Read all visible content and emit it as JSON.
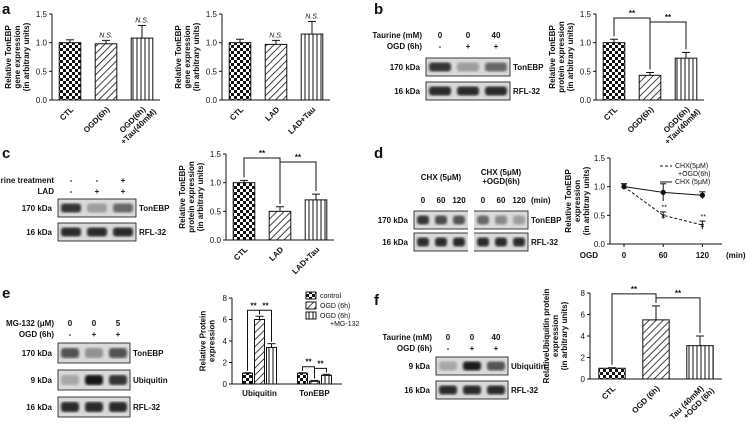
{
  "panel_letters": {
    "a": "a",
    "b": "b",
    "c": "c",
    "d": "d",
    "e": "e",
    "f": "f"
  },
  "colors": {
    "bar_fill": "#ffffff",
    "ink": "#111111",
    "blot_band": "#1a1a1a",
    "blot_bg": "#d9d9d9"
  },
  "blots": {
    "b": {
      "conditions": [
        {
          "label": "Taurine (mM)",
          "values": [
            "0",
            "0",
            "40"
          ]
        },
        {
          "label": "OGD (6h)",
          "values": [
            "-",
            "+",
            "+"
          ]
        }
      ],
      "rows": [
        {
          "kda": "170 kDa",
          "name": "TonEBP",
          "intensities": [
            0.85,
            0.35,
            0.6
          ]
        },
        {
          "kda": "16 kDa",
          "name": "RFL-32",
          "intensities": [
            0.9,
            0.9,
            0.9
          ]
        }
      ]
    },
    "c": {
      "conditions": [
        {
          "label": "Taurine treatment",
          "values": [
            "-",
            "-",
            "+"
          ]
        },
        {
          "label": "LAD",
          "values": [
            "-",
            "+",
            "+"
          ]
        }
      ],
      "rows": [
        {
          "kda": "170 kDa",
          "name": "TonEBP",
          "intensities": [
            0.85,
            0.35,
            0.6
          ]
        },
        {
          "kda": "16 kDa",
          "name": "RFL-32",
          "intensities": [
            0.9,
            0.9,
            0.9
          ]
        }
      ]
    },
    "d": {
      "groups": [
        "CHX (5μM)",
        "CHX (5μM) +OGD(6h)"
      ],
      "times": [
        "0",
        "60",
        "120"
      ],
      "unit": "(min)",
      "rows": [
        {
          "kda": "170 kDa",
          "name": "TonEBP",
          "intensities": [
            0.85,
            0.75,
            0.7,
            0.6,
            0.45,
            0.35
          ]
        },
        {
          "kda": "16 kDa",
          "name": "RFL-32",
          "intensities": [
            0.9,
            0.9,
            0.9,
            0.9,
            0.9,
            0.9
          ]
        }
      ]
    },
    "e": {
      "conditions": [
        {
          "label": "MG-132 (μM)",
          "values": [
            "0",
            "0",
            "5"
          ]
        },
        {
          "label": "OGD (6h)",
          "values": [
            "-",
            "+",
            "+"
          ]
        }
      ],
      "rows": [
        {
          "kda": "170 kDa",
          "name": "TonEBP",
          "intensities": [
            0.7,
            0.4,
            0.7
          ]
        },
        {
          "kda": "9 kDa",
          "name": "Ubiquitin",
          "intensities": [
            0.3,
            1.0,
            0.85
          ]
        },
        {
          "kda": "16 kDa",
          "name": "RFL-32",
          "intensities": [
            0.9,
            0.9,
            0.9
          ]
        }
      ]
    },
    "f": {
      "conditions": [
        {
          "label": "Taurine (mM)",
          "values": [
            "0",
            "0",
            "40"
          ]
        },
        {
          "label": "OGD (6h)",
          "values": [
            "-",
            "+",
            "+"
          ]
        }
      ],
      "rows": [
        {
          "kda": "9 kDa",
          "name": "Ubiquitin",
          "intensities": [
            0.3,
            0.95,
            0.7
          ]
        },
        {
          "kda": "16 kDa",
          "name": "RFL-32",
          "intensities": [
            0.9,
            0.9,
            0.9
          ]
        }
      ]
    }
  },
  "chart_data": [
    {
      "id": "a1",
      "type": "bar",
      "ylabel": "Relative TonEBP gene expression (in arbitrary units)",
      "categories": [
        "CTL",
        "OGD(6h)",
        "OGD(6h) +Tau(40mM)"
      ],
      "values": [
        1.0,
        0.98,
        1.08
      ],
      "errors": [
        0.05,
        0.06,
        0.22
      ],
      "annotations": [
        "",
        "N.S.",
        "N.S."
      ],
      "ylim": [
        0,
        1.5
      ],
      "yticks": [
        "0.0",
        "0.5",
        "1.0",
        "1.5"
      ],
      "patterns": [
        "checker",
        "diag",
        "vert"
      ]
    },
    {
      "id": "a2",
      "type": "bar",
      "ylabel": "Relative TonEBP gene expression (in arbitrary units)",
      "categories": [
        "CTL",
        "LAD",
        "LAD+Tau"
      ],
      "values": [
        1.0,
        0.97,
        1.15
      ],
      "errors": [
        0.06,
        0.07,
        0.22
      ],
      "annotations": [
        "",
        "N.S.",
        "N.S."
      ],
      "ylim": [
        0,
        1.5
      ],
      "yticks": [
        "0.0",
        "0.5",
        "1.0",
        "1.5"
      ],
      "patterns": [
        "checker",
        "diag",
        "vert"
      ]
    },
    {
      "id": "b",
      "type": "bar",
      "ylabel": "Relative TonEBP protein expression (in arbitrary units)",
      "categories": [
        "CTL",
        "OGD(6h)",
        "OGD(6h) +Tau(40mM)"
      ],
      "values": [
        1.0,
        0.43,
        0.73
      ],
      "errors": [
        0.06,
        0.05,
        0.1
      ],
      "brackets": [
        {
          "from": 0,
          "to": 1,
          "label": "**"
        },
        {
          "from": 1,
          "to": 2,
          "label": "**"
        }
      ],
      "ylim": [
        0,
        1.5
      ],
      "yticks": [
        "0.0",
        "0.5",
        "1.0",
        "1.5"
      ],
      "patterns": [
        "checker",
        "diag",
        "vert"
      ]
    },
    {
      "id": "c",
      "type": "bar",
      "ylabel": "Relative TonEBP protein expression (in arbitrary units)",
      "categories": [
        "CTL",
        "LAD",
        "LAD+Tau"
      ],
      "values": [
        1.0,
        0.5,
        0.7
      ],
      "errors": [
        0.04,
        0.08,
        0.1
      ],
      "brackets": [
        {
          "from": 0,
          "to": 1,
          "label": "**"
        },
        {
          "from": 1,
          "to": 2,
          "label": "**"
        }
      ],
      "ylim": [
        0,
        1.5
      ],
      "yticks": [
        "0.0",
        "0.5",
        "1.0",
        "1.5"
      ],
      "patterns": [
        "checker",
        "diag",
        "vert"
      ]
    },
    {
      "id": "d",
      "type": "line",
      "ylabel": "Relative TonEBP expression (in arbitrary units)",
      "x": [
        0,
        60,
        120
      ],
      "xticks": [
        "0",
        "60",
        "120"
      ],
      "xunit": "(min)",
      "xprefix": "OGD",
      "series": [
        {
          "name": "CHX(5μM) +OGD(6h)",
          "values": [
            1.0,
            0.5,
            0.33
          ],
          "errors": [
            0.05,
            0.06,
            0.07
          ],
          "annot": [
            "",
            "**",
            "**"
          ],
          "style": "dashed"
        },
        {
          "name": "CHX (5μM)",
          "values": [
            1.0,
            0.9,
            0.85
          ],
          "errors": [
            0.05,
            0.15,
            0.06
          ],
          "annot": [
            "",
            "",
            ""
          ],
          "style": "solid"
        }
      ],
      "ylim": [
        0,
        1.5
      ],
      "yticks": [
        "0.0",
        "0.5",
        "1.0",
        "1.5"
      ]
    },
    {
      "id": "e",
      "type": "bar",
      "ylabel": "Relative Protein expression",
      "categories": [
        "Ubiquitin",
        "TonEBP"
      ],
      "series": [
        {
          "name": "control",
          "values": [
            1.0,
            1.0
          ],
          "errors": [
            0.05,
            0.05
          ],
          "pattern": "checker"
        },
        {
          "name": "OGD (6h)",
          "values": [
            6.0,
            0.25
          ],
          "errors": [
            0.3,
            0.08
          ],
          "pattern": "diag"
        },
        {
          "name": "OGD (6h) +MG-132",
          "values": [
            3.4,
            0.8
          ],
          "errors": [
            0.35,
            0.1
          ],
          "pattern": "vert"
        }
      ],
      "brackets": [
        {
          "group": 0,
          "from": 0,
          "to": 1,
          "label": "**"
        },
        {
          "group": 0,
          "from": 1,
          "to": 2,
          "label": "**"
        },
        {
          "group": 1,
          "from": 0,
          "to": 1,
          "label": "**"
        },
        {
          "group": 1,
          "from": 1,
          "to": 2,
          "label": "**"
        }
      ],
      "ylim": [
        0,
        8
      ],
      "yticks": [
        "0",
        "2",
        "4",
        "6",
        "8"
      ]
    },
    {
      "id": "f",
      "type": "bar",
      "ylabel": "RelativeUbiquitin protein expression (in arbitrary units)",
      "categories": [
        "CTL",
        "OGD (6h)",
        "Tau (40mM) +OGD (6h)"
      ],
      "values": [
        1.0,
        5.5,
        3.1
      ],
      "errors": [
        0.05,
        1.3,
        0.9
      ],
      "brackets": [
        {
          "from": 0,
          "to": 1,
          "label": "**"
        },
        {
          "from": 1,
          "to": 2,
          "label": "**"
        }
      ],
      "ylim": [
        0,
        8
      ],
      "yticks": [
        "0",
        "2",
        "4",
        "6",
        "8"
      ],
      "patterns": [
        "checker",
        "diag",
        "vert"
      ]
    }
  ]
}
